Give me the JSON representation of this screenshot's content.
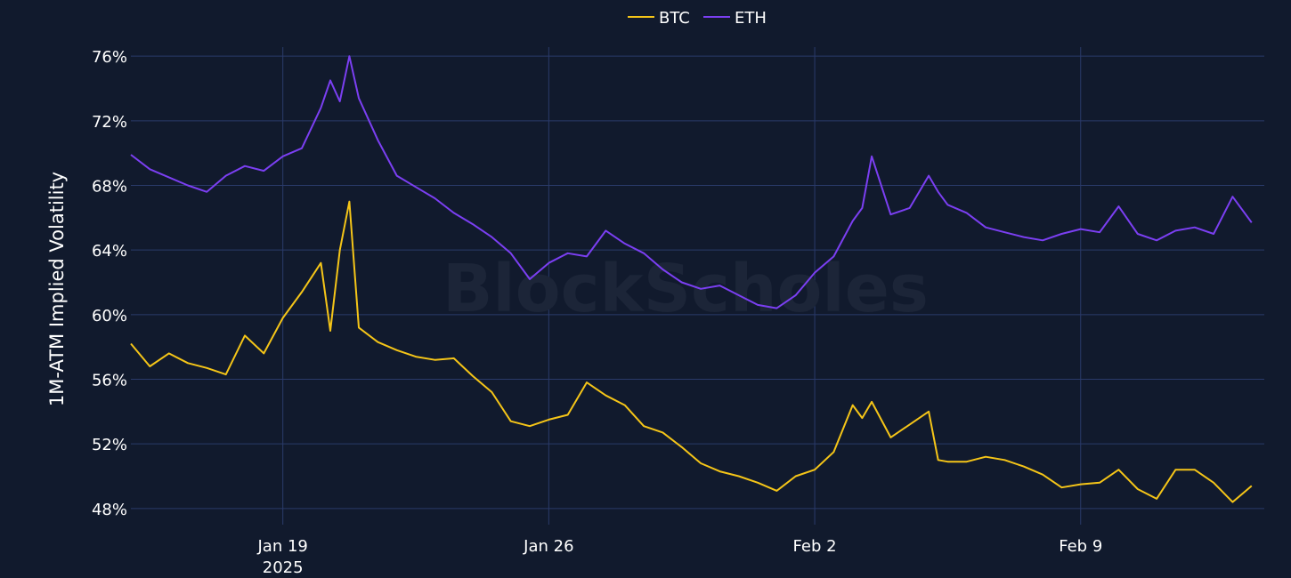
{
  "chart_data": {
    "type": "line",
    "ylabel": "1M-ATM Implied Volatility",
    "xlabel": "",
    "watermark": "BlockScholes",
    "colors": {
      "background": "#111a2d",
      "grid": "#2a3a6a",
      "BTC": "#f5c518",
      "ETH": "#7b3ff2"
    },
    "legend_position": "top-center",
    "grid": true,
    "x_range": [
      "2025-01-15",
      "2025-02-13"
    ],
    "ylim": [
      47,
      77
    ],
    "y_ticks": [
      "48%",
      "52%",
      "56%",
      "60%",
      "64%",
      "68%",
      "72%",
      "76%"
    ],
    "y_tick_values": [
      48,
      52,
      56,
      60,
      64,
      68,
      72,
      76
    ],
    "x_ticks": [
      {
        "date": "2025-01-19",
        "label": "Jan 19",
        "sublabel": "2025"
      },
      {
        "date": "2025-01-26",
        "label": "Jan 26",
        "sublabel": ""
      },
      {
        "date": "2025-02-02",
        "label": "Feb 2",
        "sublabel": ""
      },
      {
        "date": "2025-02-09",
        "label": "Feb 9",
        "sublabel": ""
      }
    ],
    "series": [
      {
        "name": "BTC",
        "color": "#f5c518",
        "points": [
          [
            "2025-01-15",
            58.2
          ],
          [
            "2025-01-15T12:00",
            56.8
          ],
          [
            "2025-01-16",
            57.6
          ],
          [
            "2025-01-16T12:00",
            57.0
          ],
          [
            "2025-01-17",
            56.7
          ],
          [
            "2025-01-17T12:00",
            56.3
          ],
          [
            "2025-01-18",
            58.7
          ],
          [
            "2025-01-18T12:00",
            57.6
          ],
          [
            "2025-01-19",
            59.8
          ],
          [
            "2025-01-19T12:00",
            61.4
          ],
          [
            "2025-01-20",
            63.2
          ],
          [
            "2025-01-20T06:00",
            59.0
          ],
          [
            "2025-01-20T12:00",
            64.0
          ],
          [
            "2025-01-20T18:00",
            67.0
          ],
          [
            "2025-01-21",
            59.2
          ],
          [
            "2025-01-21T12:00",
            58.3
          ],
          [
            "2025-01-22",
            57.8
          ],
          [
            "2025-01-22T12:00",
            57.4
          ],
          [
            "2025-01-23",
            57.2
          ],
          [
            "2025-01-23T12:00",
            57.3
          ],
          [
            "2025-01-24",
            56.2
          ],
          [
            "2025-01-24T12:00",
            55.2
          ],
          [
            "2025-01-25",
            53.4
          ],
          [
            "2025-01-25T12:00",
            53.1
          ],
          [
            "2025-01-26",
            53.5
          ],
          [
            "2025-01-26T12:00",
            53.8
          ],
          [
            "2025-01-27",
            55.8
          ],
          [
            "2025-01-27T12:00",
            55.0
          ],
          [
            "2025-01-28",
            54.4
          ],
          [
            "2025-01-28T12:00",
            53.1
          ],
          [
            "2025-01-29",
            52.7
          ],
          [
            "2025-01-29T12:00",
            51.8
          ],
          [
            "2025-01-30",
            50.8
          ],
          [
            "2025-01-30T12:00",
            50.3
          ],
          [
            "2025-01-31",
            50.0
          ],
          [
            "2025-01-31T12:00",
            49.6
          ],
          [
            "2025-02-01",
            49.1
          ],
          [
            "2025-02-01T12:00",
            50.0
          ],
          [
            "2025-02-02",
            50.4
          ],
          [
            "2025-02-02T12:00",
            51.5
          ],
          [
            "2025-02-03",
            54.4
          ],
          [
            "2025-02-03T06:00",
            53.6
          ],
          [
            "2025-02-03T12:00",
            54.6
          ],
          [
            "2025-02-04",
            52.4
          ],
          [
            "2025-02-04T12:00",
            53.2
          ],
          [
            "2025-02-05",
            54.0
          ],
          [
            "2025-02-05T06:00",
            51.0
          ],
          [
            "2025-02-05T12:00",
            50.9
          ],
          [
            "2025-02-06",
            50.9
          ],
          [
            "2025-02-06T12:00",
            51.2
          ],
          [
            "2025-02-07",
            51.0
          ],
          [
            "2025-02-07T12:00",
            50.6
          ],
          [
            "2025-02-08",
            50.1
          ],
          [
            "2025-02-08T12:00",
            49.3
          ],
          [
            "2025-02-09",
            49.5
          ],
          [
            "2025-02-09T12:00",
            49.6
          ],
          [
            "2025-02-10",
            50.4
          ],
          [
            "2025-02-10T12:00",
            49.2
          ],
          [
            "2025-02-11",
            48.6
          ],
          [
            "2025-02-11T12:00",
            50.4
          ],
          [
            "2025-02-12",
            50.4
          ],
          [
            "2025-02-12T12:00",
            49.6
          ],
          [
            "2025-02-13",
            48.4
          ],
          [
            "2025-02-13T12:00",
            49.4
          ]
        ]
      },
      {
        "name": "ETH",
        "color": "#7b3ff2",
        "points": [
          [
            "2025-01-15",
            69.9
          ],
          [
            "2025-01-15T12:00",
            69.0
          ],
          [
            "2025-01-16",
            68.5
          ],
          [
            "2025-01-16T12:00",
            68.0
          ],
          [
            "2025-01-17",
            67.6
          ],
          [
            "2025-01-17T12:00",
            68.6
          ],
          [
            "2025-01-18",
            69.2
          ],
          [
            "2025-01-18T12:00",
            68.9
          ],
          [
            "2025-01-19",
            69.8
          ],
          [
            "2025-01-19T12:00",
            70.3
          ],
          [
            "2025-01-20",
            72.8
          ],
          [
            "2025-01-20T06:00",
            74.5
          ],
          [
            "2025-01-20T12:00",
            73.2
          ],
          [
            "2025-01-20T18:00",
            76.0
          ],
          [
            "2025-01-21",
            73.4
          ],
          [
            "2025-01-21T12:00",
            70.8
          ],
          [
            "2025-01-22",
            68.6
          ],
          [
            "2025-01-22T12:00",
            67.9
          ],
          [
            "2025-01-23",
            67.2
          ],
          [
            "2025-01-23T12:00",
            66.3
          ],
          [
            "2025-01-24",
            65.6
          ],
          [
            "2025-01-24T12:00",
            64.8
          ],
          [
            "2025-01-25",
            63.8
          ],
          [
            "2025-01-25T12:00",
            62.2
          ],
          [
            "2025-01-26",
            63.2
          ],
          [
            "2025-01-26T12:00",
            63.8
          ],
          [
            "2025-01-27",
            63.6
          ],
          [
            "2025-01-27T12:00",
            65.2
          ],
          [
            "2025-01-28",
            64.4
          ],
          [
            "2025-01-28T12:00",
            63.8
          ],
          [
            "2025-01-29",
            62.8
          ],
          [
            "2025-01-29T12:00",
            62.0
          ],
          [
            "2025-01-30",
            61.6
          ],
          [
            "2025-01-30T12:00",
            61.8
          ],
          [
            "2025-01-31",
            61.2
          ],
          [
            "2025-01-31T12:00",
            60.6
          ],
          [
            "2025-02-01",
            60.4
          ],
          [
            "2025-02-01T12:00",
            61.2
          ],
          [
            "2025-02-02",
            62.6
          ],
          [
            "2025-02-02T12:00",
            63.6
          ],
          [
            "2025-02-03",
            65.8
          ],
          [
            "2025-02-03T06:00",
            66.6
          ],
          [
            "2025-02-03T12:00",
            69.8
          ],
          [
            "2025-02-04",
            66.2
          ],
          [
            "2025-02-04T12:00",
            66.6
          ],
          [
            "2025-02-05",
            68.6
          ],
          [
            "2025-02-05T06:00",
            67.6
          ],
          [
            "2025-02-05T12:00",
            66.8
          ],
          [
            "2025-02-06",
            66.3
          ],
          [
            "2025-02-06T12:00",
            65.4
          ],
          [
            "2025-02-07",
            65.1
          ],
          [
            "2025-02-07T12:00",
            64.8
          ],
          [
            "2025-02-08",
            64.6
          ],
          [
            "2025-02-08T12:00",
            65.0
          ],
          [
            "2025-02-09",
            65.3
          ],
          [
            "2025-02-09T12:00",
            65.1
          ],
          [
            "2025-02-10",
            66.7
          ],
          [
            "2025-02-10T12:00",
            65.0
          ],
          [
            "2025-02-11",
            64.6
          ],
          [
            "2025-02-11T12:00",
            65.2
          ],
          [
            "2025-02-12",
            65.4
          ],
          [
            "2025-02-12T12:00",
            65.0
          ],
          [
            "2025-02-13",
            67.3
          ],
          [
            "2025-02-13T12:00",
            65.7
          ]
        ]
      }
    ]
  }
}
